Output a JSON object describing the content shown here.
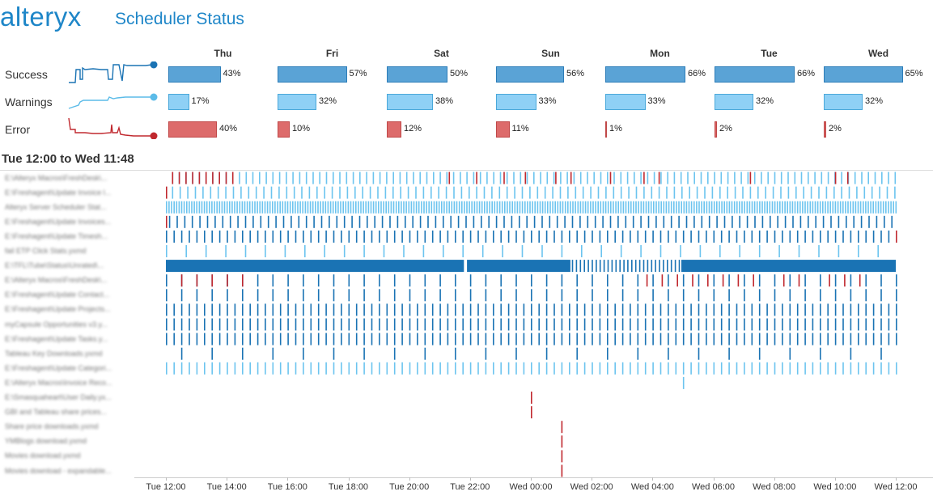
{
  "header": {
    "logo": "alteryx",
    "title": "Scheduler Status"
  },
  "summary": {
    "days": [
      "Thu",
      "Fri",
      "Sat",
      "Sun",
      "Mon",
      "Tue",
      "Wed"
    ],
    "rows": [
      {
        "label": "Success",
        "values": [
          43,
          57,
          50,
          56,
          66,
          66,
          65
        ],
        "pct": [
          "43%",
          "57%",
          "50%",
          "56%",
          "66%",
          "66%",
          "65%"
        ],
        "color": "#5aa3d6",
        "stroke": "#2d7db8",
        "spark": "#1a73b4"
      },
      {
        "label": "Warnings",
        "values": [
          17,
          32,
          38,
          33,
          33,
          32,
          32
        ],
        "pct": [
          "17%",
          "32%",
          "38%",
          "33%",
          "33%",
          "32%",
          "32%"
        ],
        "color": "#8fd0f5",
        "stroke": "#4aa8da",
        "spark": "#5bbbe8"
      },
      {
        "label": "Error",
        "values": [
          40,
          10,
          12,
          11,
          1,
          2,
          2
        ],
        "pct": [
          "40%",
          "10%",
          "12%",
          "11%",
          "1%",
          "2%",
          "2%"
        ],
        "color": "#dd6b6b",
        "stroke": "#c04848",
        "spark": "#c0282e"
      }
    ]
  },
  "range_label": "Tue 12:00 to Wed 11:48",
  "colors": {
    "success": "#1a73b4",
    "warning": "#6cc4ef",
    "error": "#c0282e"
  },
  "chart_data": [
    {
      "type": "bar",
      "categories": [
        "Thu",
        "Fri",
        "Sat",
        "Sun",
        "Mon",
        "Tue",
        "Wed"
      ],
      "series": [
        {
          "name": "Success",
          "values": [
            43,
            57,
            50,
            56,
            66,
            66,
            65
          ]
        },
        {
          "name": "Warnings",
          "values": [
            17,
            32,
            38,
            33,
            33,
            32,
            32
          ]
        },
        {
          "name": "Error",
          "values": [
            40,
            10,
            12,
            11,
            1,
            2,
            2
          ]
        }
      ],
      "unit": "%"
    },
    {
      "type": "scatter",
      "title": "Tue 12:00 to Wed 11:48",
      "x_ticks": [
        "Tue 12:00",
        "Tue 14:00",
        "Tue 16:00",
        "Tue 18:00",
        "Tue 20:00",
        "Tue 22:00",
        "Wed 00:00",
        "Wed 02:00",
        "Wed 04:00",
        "Wed 06:00",
        "Wed 08:00",
        "Wed 10:00",
        "Wed 12:00"
      ],
      "x_range_hours": [
        0,
        24
      ],
      "rows": [
        {
          "name": "E:\\Alteryx Macros\\FreshDesk\\...",
          "runs": [
            {
              "start": 0.2,
              "end": 24,
              "interval": 0.22,
              "status": "warning"
            },
            {
              "start": 0.2,
              "end": 2.2,
              "interval": 0.22,
              "status": "error"
            },
            {
              "list": [
                9.3,
                10.2,
                11.1,
                11.8,
                12.8,
                13.3,
                14.6,
                15.7,
                16.2,
                19.2,
                22.0,
                22.4
              ],
              "status": "error"
            }
          ]
        },
        {
          "name": "E:\\Freshagent\\Update Invoice l...",
          "runs": [
            {
              "start": 0.2,
              "end": 24,
              "interval": 0.25,
              "status": "warning"
            },
            {
              "list": [
                0
              ],
              "status": "error"
            }
          ]
        },
        {
          "name": "Alteryx Server Scheduler Stat...",
          "runs": [
            {
              "start": 0,
              "end": 24,
              "interval": 0.083,
              "status": "warning"
            }
          ]
        },
        {
          "name": "E:\\Freshagent\\Update Invoices...",
          "runs": [
            {
              "start": 0.1,
              "end": 24,
              "interval": 0.25,
              "status": "success"
            },
            {
              "list": [
                0
              ],
              "status": "error"
            }
          ]
        },
        {
          "name": "E:\\Freshagent\\Update Timesh...",
          "runs": [
            {
              "start": 0,
              "end": 23.8,
              "interval": 0.25,
              "status": "success"
            },
            {
              "list": [
                24
              ],
              "status": "error"
            }
          ]
        },
        {
          "name": "fail ETP Click Stats.yxmd",
          "runs": [
            {
              "start": 0,
              "end": 24,
              "interval": 0.65,
              "status": "warning"
            }
          ]
        },
        {
          "name": "E:\\TFL\\Tube\\Status\\Unrated\\...",
          "runs": [
            {
              "block": [
                0,
                9.8
              ],
              "status": "success"
            },
            {
              "block": [
                9.9,
                13.3
              ],
              "status": "success"
            },
            {
              "start": 13.35,
              "end": 16.9,
              "interval": 0.13,
              "status": "success"
            },
            {
              "block": [
                16.95,
                24
              ],
              "status": "success"
            }
          ]
        },
        {
          "name": "E:\\Alteryx Macros\\FreshDesk\\...",
          "runs": [
            {
              "start": 0,
              "end": 24,
              "interval": 0.5,
              "status": "success"
            },
            {
              "list": [
                0.5,
                1.0,
                1.5,
                2.0,
                2.5,
                15.8,
                16.3,
                16.8,
                17.3,
                17.8,
                18.3,
                18.8,
                19.3,
                20.3,
                20.8,
                21.8,
                22.3,
                22.8
              ],
              "status": "error"
            }
          ]
        },
        {
          "name": "E:\\Freshagent\\Update Contact...",
          "runs": [
            {
              "start": 0,
              "end": 24,
              "interval": 0.5,
              "status": "success"
            }
          ]
        },
        {
          "name": "E:\\Freshagent\\Update Projects...",
          "runs": [
            {
              "start": 0,
              "end": 24,
              "interval": 0.25,
              "status": "success"
            }
          ]
        },
        {
          "name": "myCapsule Opportunities v3.y...",
          "runs": [
            {
              "start": 0,
              "end": 24,
              "interval": 0.25,
              "status": "success"
            }
          ]
        },
        {
          "name": "E:\\Freshagent\\Update Tasks.y...",
          "runs": [
            {
              "start": 0,
              "end": 24,
              "interval": 0.25,
              "status": "success"
            }
          ]
        },
        {
          "name": "Tableau Key Downloads.yxmd",
          "runs": [
            {
              "start": 0.5,
              "end": 24,
              "interval": 1.0,
              "status": "success"
            }
          ]
        },
        {
          "name": "E:\\Freshagent\\Update Categori...",
          "runs": [
            {
              "start": 0,
              "end": 24,
              "interval": 0.25,
              "status": "warning"
            }
          ]
        },
        {
          "name": "E:\\Alteryx Macros\\Invoice Reco...",
          "runs": [
            {
              "list": [
                17.0
              ],
              "status": "warning"
            }
          ]
        },
        {
          "name": "E:\\Smasquaheart\\User Daily.yx...",
          "runs": [
            {
              "list": [
                12.0
              ],
              "status": "error"
            }
          ]
        },
        {
          "name": "GBI and Tableau share prices...",
          "runs": [
            {
              "list": [
                12.0
              ],
              "status": "error"
            }
          ]
        },
        {
          "name": "Share price downloads.yxmd",
          "runs": [
            {
              "list": [
                13.0
              ],
              "status": "error"
            }
          ]
        },
        {
          "name": "YMBlogs download.yxmd",
          "runs": [
            {
              "list": [
                13.0
              ],
              "status": "error"
            }
          ]
        },
        {
          "name": "Movies download.yxmd",
          "runs": [
            {
              "list": [
                13.0
              ],
              "status": "error"
            }
          ]
        },
        {
          "name": "Movies download - expandable...",
          "runs": [
            {
              "list": [
                13.0
              ],
              "status": "error"
            }
          ]
        }
      ]
    }
  ]
}
